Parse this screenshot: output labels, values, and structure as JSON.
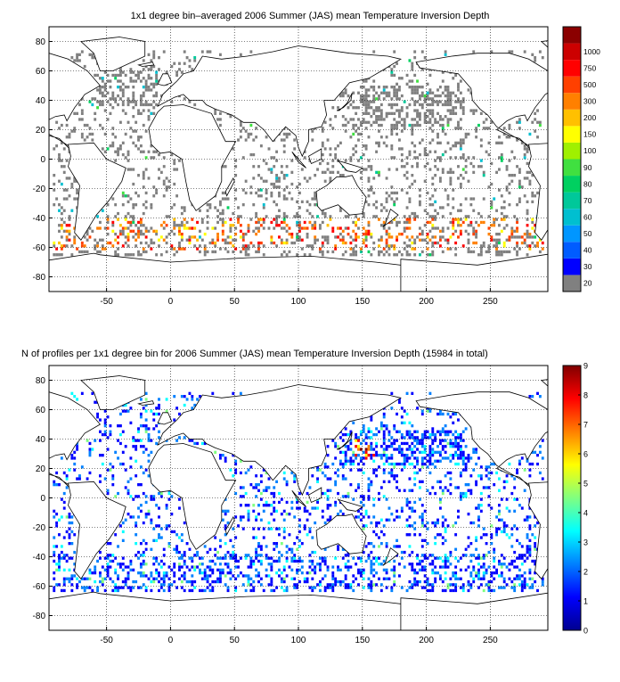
{
  "chart_data": [
    {
      "type": "heatmap",
      "title": "1x1 degree bin–averaged 2006 Summer (JAS) mean Temperature Inversion Depth",
      "xlabel": "",
      "ylabel": "",
      "xlim": [
        -95,
        295
      ],
      "ylim": [
        -90,
        90
      ],
      "x_ticks": [
        -50,
        0,
        50,
        100,
        150,
        200,
        250
      ],
      "y_ticks": [
        80,
        60,
        40,
        20,
        0,
        -20,
        -40,
        -60,
        -80
      ],
      "grid": true,
      "colorbar": {
        "scale": "categorical",
        "labels": [
          "20",
          "30",
          "40",
          "50",
          "60",
          "70",
          "80",
          "90",
          "100",
          "150",
          "200",
          "300",
          "500",
          "750",
          "1000"
        ],
        "colors": [
          "#808080",
          "#0000ff",
          "#005cff",
          "#0096ff",
          "#00bfd0",
          "#00c89a",
          "#00d060",
          "#40e040",
          "#a0f000",
          "#ffff00",
          "#ffc000",
          "#ff8000",
          "#ff4000",
          "#ff0000",
          "#cc0000",
          "#8b0000"
        ]
      },
      "regions": [
        {
          "name": "mostly-gray bins",
          "value": "20",
          "lon": [
            -90,
            290
          ],
          "lat": [
            -60,
            75
          ]
        },
        {
          "name": "southern ocean band",
          "value": "200-500",
          "lon": [
            -60,
            270
          ],
          "lat": [
            -65,
            -40
          ]
        }
      ]
    },
    {
      "type": "heatmap",
      "title": "N of profiles per 1x1 degree bin for 2006 Summer (JAS) mean Temperature Inversion Depth  (15984 in total)",
      "xlabel": "",
      "ylabel": "",
      "xlim": [
        -95,
        295
      ],
      "ylim": [
        -90,
        90
      ],
      "x_ticks": [
        -50,
        0,
        50,
        100,
        150,
        200,
        250
      ],
      "y_ticks": [
        80,
        60,
        40,
        20,
        0,
        -20,
        -40,
        -60,
        -80
      ],
      "grid": true,
      "colorbar": {
        "scale": "continuous",
        "range": [
          0,
          9
        ],
        "labels": [
          "0",
          "1",
          "2",
          "3",
          "4",
          "5",
          "6",
          "7",
          "8",
          "9"
        ],
        "colors": [
          "#00008f",
          "#0000ff",
          "#0080ff",
          "#00ffff",
          "#80ff80",
          "#ffff00",
          "#ff8000",
          "#ff0000",
          "#800000"
        ]
      },
      "total_profiles": 15984,
      "regions": [
        {
          "name": "mostly 1-2 profiles per bin",
          "value": "1-2",
          "lon": [
            -90,
            290
          ],
          "lat": [
            -60,
            70
          ]
        },
        {
          "name": "hotspot near Japan",
          "value": "6-9",
          "lon": [
            140,
            160
          ],
          "lat": [
            25,
            40
          ]
        }
      ]
    }
  ]
}
